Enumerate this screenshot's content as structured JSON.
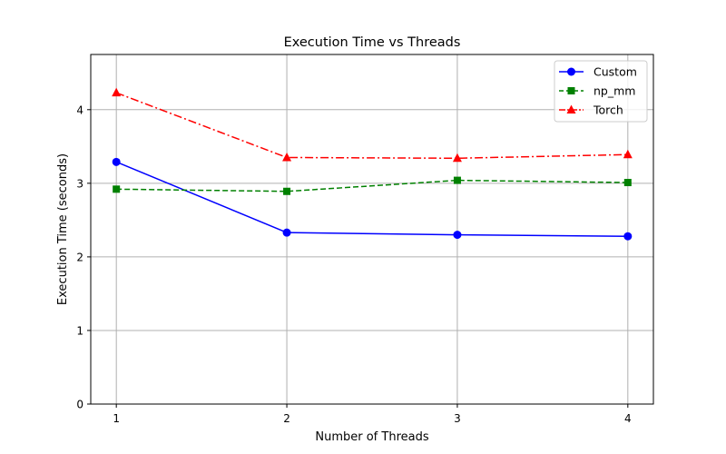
{
  "chart_data": {
    "type": "line",
    "title": "Execution Time vs Threads",
    "xlabel": "Number of Threads",
    "ylabel": "Execution Time (seconds)",
    "x": [
      1,
      2,
      3,
      4
    ],
    "xticks": [
      "1",
      "2",
      "3",
      "4"
    ],
    "yticks": [
      "0",
      "1",
      "2",
      "3",
      "4"
    ],
    "ylim": [
      0,
      4.75
    ],
    "grid": true,
    "legend_position": "top-right",
    "series": [
      {
        "name": "Custom",
        "values": [
          3.29,
          2.33,
          2.3,
          2.28
        ],
        "color": "#0000ff",
        "line_style": "solid",
        "marker": "circle"
      },
      {
        "name": "np_mm",
        "values": [
          2.92,
          2.89,
          3.04,
          3.01
        ],
        "color": "#008000",
        "line_style": "dashed",
        "marker": "square"
      },
      {
        "name": "Torch",
        "values": [
          4.23,
          3.35,
          3.34,
          3.39
        ],
        "color": "#ff0000",
        "line_style": "dash-dot",
        "marker": "triangle"
      }
    ]
  }
}
